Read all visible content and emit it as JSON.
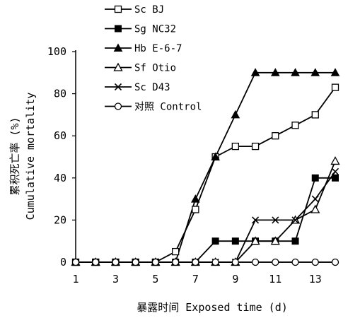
{
  "chart_data": {
    "type": "line",
    "title": "",
    "xlabel": "暴露时间 Exposed time (d)",
    "ylabel_cn": "累积死亡率 (%)",
    "ylabel_en": "Cumulative mortality",
    "xlim": [
      1,
      14
    ],
    "ylim": [
      0,
      100
    ],
    "xticks": [
      1,
      3,
      5,
      7,
      9,
      11,
      13
    ],
    "yticks": [
      0,
      20,
      40,
      60,
      80,
      100
    ],
    "grid": false,
    "legend_position": "top-left",
    "x": [
      1,
      2,
      3,
      4,
      5,
      6,
      7,
      8,
      9,
      10,
      11,
      12,
      13,
      14
    ],
    "series": [
      {
        "name": "Sc BJ",
        "marker": "open-square",
        "values": [
          0,
          0,
          0,
          0,
          0,
          5,
          25,
          50,
          55,
          55,
          60,
          65,
          70,
          83
        ]
      },
      {
        "name": "Sg NC32",
        "marker": "filled-square",
        "values": [
          0,
          0,
          0,
          0,
          0,
          0,
          0,
          10,
          10,
          10,
          10,
          10,
          40,
          40
        ]
      },
      {
        "name": "Hb E-6-7",
        "marker": "filled-triangle",
        "values": [
          0,
          0,
          0,
          0,
          0,
          0,
          30,
          50,
          70,
          90,
          90,
          90,
          90,
          90
        ]
      },
      {
        "name": "Sf Otio",
        "marker": "open-triangle",
        "values": [
          0,
          0,
          0,
          0,
          0,
          0,
          0,
          0,
          0,
          10,
          10,
          20,
          25,
          48
        ]
      },
      {
        "name": "Sc D43",
        "marker": "cross",
        "values": [
          0,
          0,
          0,
          0,
          0,
          0,
          0,
          0,
          0,
          20,
          20,
          20,
          30,
          43
        ]
      },
      {
        "name": "对照 Control",
        "marker": "open-circle",
        "values": [
          0,
          0,
          0,
          0,
          0,
          0,
          0,
          0,
          0,
          0,
          0,
          0,
          0,
          0
        ]
      }
    ]
  }
}
